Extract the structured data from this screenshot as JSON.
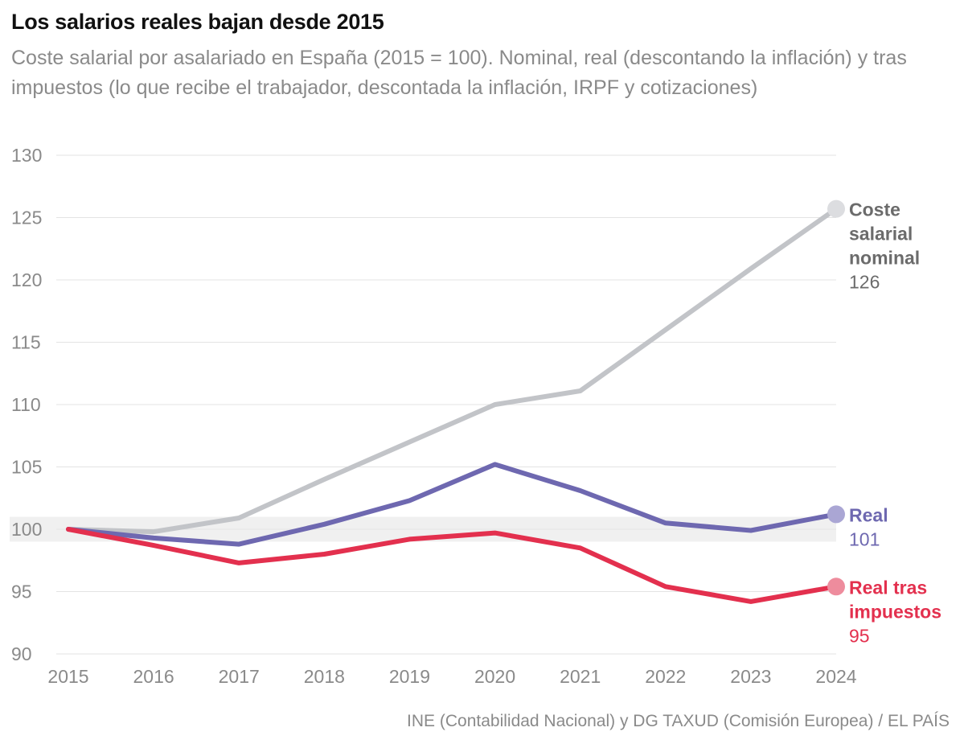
{
  "title": "Los salarios reales bajan desde 2015",
  "subtitle": "Coste salarial por asalariado en España (2015 = 100). Nominal, real (descontando la inflación) y tras impuestos (lo que recibe el trabajador, descontada la inflación, IRPF y cotizaciones)",
  "source": "INE (Contabilidad Nacional) y DG TAXUD (Comisión Europea) / EL PAÍS",
  "chart_data": {
    "type": "line",
    "x": [
      "2015",
      "2016",
      "2017",
      "2018",
      "2019",
      "2020",
      "2021",
      "2022",
      "2023",
      "2024"
    ],
    "ylim": [
      90,
      130
    ],
    "yticks": [
      "90",
      "95",
      "100",
      "105",
      "110",
      "115",
      "120",
      "125",
      "130"
    ],
    "reference_band": [
      99,
      101
    ],
    "grid": true,
    "series": [
      {
        "id": "nominal",
        "name_lines": [
          "Coste",
          "salarial",
          "nominal"
        ],
        "end_label": "126",
        "color": "#c2c4c8",
        "label_color": "#6b6b6b",
        "value_color": "#6b6b6b",
        "dot_color": "#dcdde0",
        "values": [
          100,
          99.8,
          100.9,
          104.0,
          107.0,
          110.0,
          111.1,
          116.0,
          120.9,
          125.7
        ]
      },
      {
        "id": "real",
        "name_lines": [
          "Real"
        ],
        "end_label": "101",
        "color": "#6e68b0",
        "label_color": "#6e68b0",
        "value_color": "#6e68b0",
        "dot_color": "#aaa6d4",
        "values": [
          100,
          99.3,
          98.8,
          100.4,
          102.3,
          105.2,
          103.1,
          100.5,
          99.9,
          101.2
        ]
      },
      {
        "id": "after_tax",
        "name_lines": [
          "Real tras",
          "impuestos"
        ],
        "end_label": "95",
        "color": "#e3304e",
        "label_color": "#e3304e",
        "value_color": "#e3304e",
        "dot_color": "#ee8c9d",
        "values": [
          100,
          98.7,
          97.3,
          98.0,
          99.2,
          99.7,
          98.5,
          95.4,
          94.2,
          95.4
        ]
      }
    ]
  }
}
